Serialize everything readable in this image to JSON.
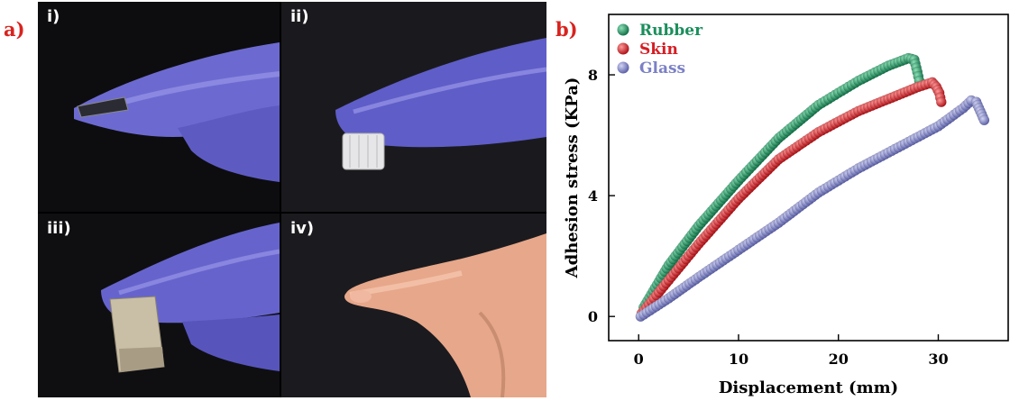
{
  "panel_a": {
    "letter": "a)",
    "photos": [
      {
        "label": "i)",
        "icon": "gloved-finger-holding-film"
      },
      {
        "label": "ii)",
        "icon": "gloved-finger-holding-cap"
      },
      {
        "label": "iii)",
        "icon": "gloved-finger-holding-paper"
      },
      {
        "label": "iv)",
        "icon": "bare-finger"
      }
    ]
  },
  "panel_b": {
    "letter": "b)"
  },
  "colors": {
    "Rubber": "#1a8f5c",
    "Skin": "#d41e24",
    "Glass": "#7b80c6",
    "letters": "#d8231f"
  },
  "chart_data": {
    "type": "scatter",
    "xlabel": "Displacement (mm)",
    "ylabel": "Adhesion stress (KPa)",
    "xlim": [
      -3,
      37
    ],
    "ylim": [
      -0.8,
      10
    ],
    "xticks": [
      0,
      10,
      20,
      30
    ],
    "yticks": [
      0,
      4,
      8
    ],
    "grid": false,
    "legend": "top-left",
    "series": [
      {
        "name": "Rubber",
        "x": [
          0.5,
          3,
          6,
          10,
          14,
          18,
          22,
          25,
          27,
          27.6,
          27.9,
          28.1
        ],
        "y": [
          0.3,
          1.7,
          3.0,
          4.5,
          5.9,
          7.0,
          7.8,
          8.3,
          8.55,
          8.5,
          8.1,
          7.8
        ]
      },
      {
        "name": "Skin",
        "x": [
          0.3,
          3,
          6,
          10,
          14,
          18,
          22,
          25,
          28,
          29.4,
          29.8,
          30.1,
          30.3
        ],
        "y": [
          0.1,
          1.2,
          2.4,
          3.9,
          5.2,
          6.1,
          6.8,
          7.2,
          7.6,
          7.75,
          7.6,
          7.4,
          7.1
        ]
      },
      {
        "name": "Glass",
        "x": [
          0.2,
          3,
          6,
          10,
          14,
          18,
          22,
          26,
          30,
          32.5,
          33.3,
          33.8,
          34.2,
          34.6
        ],
        "y": [
          0.0,
          0.6,
          1.3,
          2.2,
          3.1,
          4.1,
          4.9,
          5.6,
          6.3,
          6.9,
          7.15,
          7.1,
          6.8,
          6.5
        ]
      }
    ]
  }
}
